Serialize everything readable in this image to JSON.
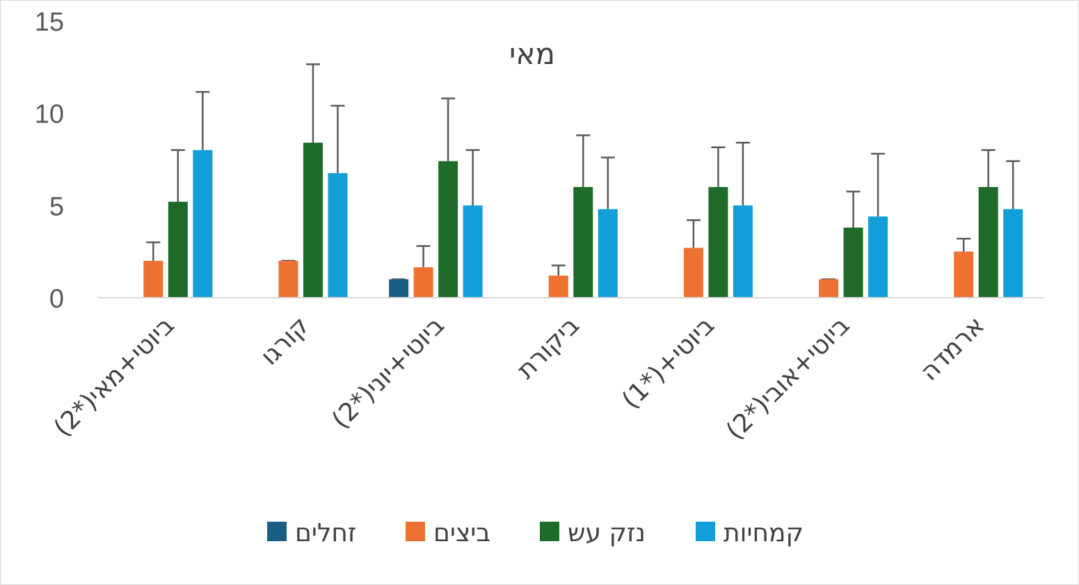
{
  "chart_data": {
    "type": "bar",
    "title": "מאי",
    "xlabel": "",
    "ylabel": "",
    "ylim": [
      0,
      15
    ],
    "yticks": [
      0,
      5,
      10,
      15
    ],
    "grid": false,
    "legend_position": "bottom",
    "categories": [
      "ביוטי+מאי(*2)",
      "קורגו",
      "ביוטי+יוני(*2)",
      "ביקורת",
      "ביוטי+(*1)",
      "ביוטי+אובי(*2)",
      "ארמדה"
    ],
    "series": [
      {
        "name": "זחלים",
        "color": "#1b5e84",
        "values": [
          null,
          null,
          1.0,
          null,
          null,
          null,
          null
        ],
        "errors": [
          null,
          null,
          0,
          null,
          null,
          null,
          null
        ]
      },
      {
        "name": "ביצים",
        "color": "#ed7232",
        "values": [
          2.0,
          2.0,
          1.65,
          1.2,
          2.7,
          1.0,
          2.5
        ],
        "errors": [
          1.0,
          0,
          1.15,
          0.55,
          1.5,
          0,
          0.7
        ]
      },
      {
        "name": "נזק עש",
        "color": "#1e6b2a",
        "values": [
          5.2,
          8.4,
          7.4,
          6.0,
          6.0,
          3.8,
          6.0
        ],
        "errors": [
          2.8,
          4.25,
          3.4,
          2.8,
          2.15,
          1.95,
          2.0
        ]
      },
      {
        "name": "קמחיות",
        "color": "#129ed8",
        "values": [
          8.0,
          6.75,
          5.0,
          4.8,
          5.0,
          4.4,
          4.8
        ],
        "errors": [
          3.15,
          3.65,
          3.0,
          2.8,
          3.4,
          3.4,
          2.6
        ]
      }
    ]
  }
}
